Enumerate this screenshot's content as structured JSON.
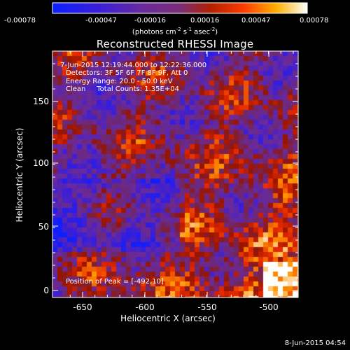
{
  "colorbar": {
    "ticks": [
      "-0.00078",
      "-0.00047",
      "-0.00016",
      "0.00016",
      "0.00047",
      "0.00078"
    ],
    "units": {
      "prefix": "(photons cm",
      "e1": "-2",
      "mid": " s",
      "e2": "-1",
      "mid2": " asec",
      "e3": "-2",
      "suffix": ")"
    }
  },
  "title": "Reconstructed RHESSI Image",
  "info": {
    "time_range": "7-Jun-2015 12:19:44.000 to 12:22:36.000",
    "detectors": "Detectors: 3F 5F 6F 7F 8F 9F, Att 0",
    "energy": "Energy Range: 20.0 - 50.0 keV",
    "clean": "Clean     Total Counts: 1.35E+04",
    "peak": "Position of Peak = [-492,10]"
  },
  "axes": {
    "xlabel": "Heliocentric X (arcsec)",
    "ylabel": "Heliocentric Y (arcsec)",
    "xticks": [
      "-650",
      "-600",
      "-550",
      "-500"
    ],
    "yticks": [
      "150",
      "100",
      "50",
      "0"
    ]
  },
  "footer_date": "8-Jun-2015 04:54",
  "colors": {
    "background": "#000000",
    "axis": "#ffffff"
  }
}
